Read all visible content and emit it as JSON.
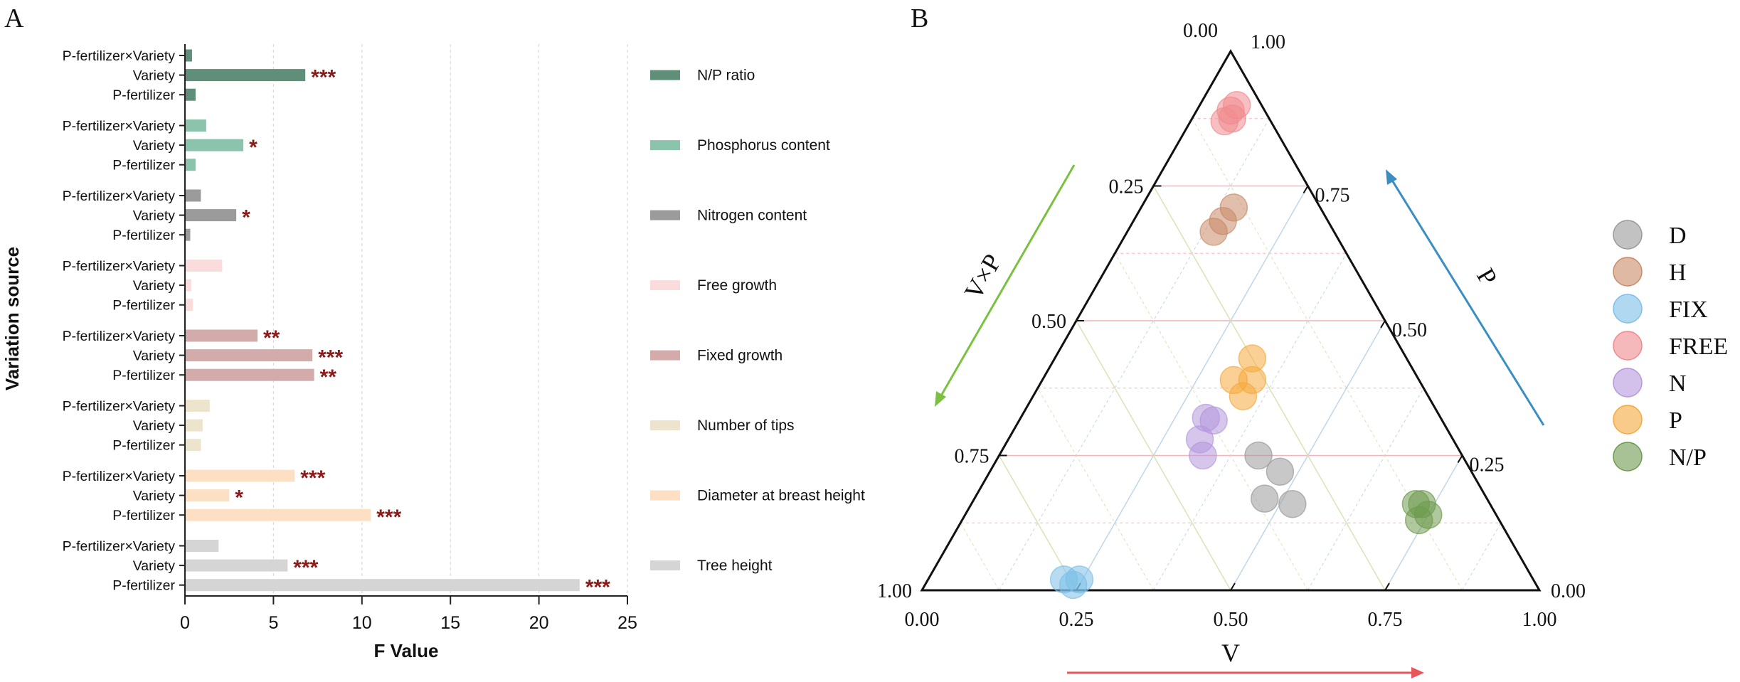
{
  "panel_a_label": "A",
  "panel_b_label": "B",
  "chart_data": [
    {
      "type": "bar",
      "orientation": "horizontal",
      "xlabel": "F Value",
      "ylabel": "Variation source",
      "xlim": [
        0,
        25
      ],
      "xticks": [
        0,
        5,
        10,
        15,
        20,
        25
      ],
      "grid": "vertical-dashed",
      "groups": [
        {
          "name": "N/P ratio",
          "color": "#5f8f78",
          "bars": [
            {
              "category": "P-fertilizer×Variety",
              "value": 0.4,
              "sig": ""
            },
            {
              "category": "Variety",
              "value": 6.8,
              "sig": "***"
            },
            {
              "category": "P-fertilizer",
              "value": 0.6,
              "sig": ""
            }
          ]
        },
        {
          "name": "Phosphorus content",
          "color": "#8cc3ac",
          "bars": [
            {
              "category": "P-fertilizer×Variety",
              "value": 1.2,
              "sig": ""
            },
            {
              "category": "Variety",
              "value": 3.3,
              "sig": "*"
            },
            {
              "category": "P-fertilizer",
              "value": 0.6,
              "sig": ""
            }
          ]
        },
        {
          "name": "Nitrogen content",
          "color": "#9b9b9b",
          "bars": [
            {
              "category": "P-fertilizer×Variety",
              "value": 0.9,
              "sig": ""
            },
            {
              "category": "Variety",
              "value": 2.9,
              "sig": "*"
            },
            {
              "category": "P-fertilizer",
              "value": 0.3,
              "sig": ""
            }
          ]
        },
        {
          "name": "Free growth",
          "color": "#fadcdc",
          "bars": [
            {
              "category": "P-fertilizer×Variety",
              "value": 2.1,
              "sig": ""
            },
            {
              "category": "Variety",
              "value": 0.35,
              "sig": ""
            },
            {
              "category": "P-fertilizer",
              "value": 0.45,
              "sig": ""
            }
          ]
        },
        {
          "name": "Fixed growth",
          "color": "#d3abab",
          "bars": [
            {
              "category": "P-fertilizer×Variety",
              "value": 4.1,
              "sig": "**"
            },
            {
              "category": "Variety",
              "value": 7.2,
              "sig": "***"
            },
            {
              "category": "P-fertilizer",
              "value": 7.3,
              "sig": "**"
            }
          ]
        },
        {
          "name": "Number of tips",
          "color": "#ece4cc",
          "bars": [
            {
              "category": "P-fertilizer×Variety",
              "value": 1.4,
              "sig": ""
            },
            {
              "category": "Variety",
              "value": 1.0,
              "sig": ""
            },
            {
              "category": "P-fertilizer",
              "value": 0.9,
              "sig": ""
            }
          ]
        },
        {
          "name": "Diameter at breast height",
          "color": "#fde0c4",
          "bars": [
            {
              "category": "P-fertilizer×Variety",
              "value": 6.2,
              "sig": "***"
            },
            {
              "category": "Variety",
              "value": 2.5,
              "sig": "*"
            },
            {
              "category": "P-fertilizer",
              "value": 10.5,
              "sig": "***"
            }
          ]
        },
        {
          "name": "Tree height",
          "color": "#d5d5d5",
          "bars": [
            {
              "category": "P-fertilizer×Variety",
              "value": 1.9,
              "sig": ""
            },
            {
              "category": "Variety",
              "value": 5.8,
              "sig": "***"
            },
            {
              "category": "P-fertilizer",
              "value": 22.3,
              "sig": "***"
            }
          ]
        }
      ]
    },
    {
      "type": "ternary-scatter",
      "axes": {
        "bottom": {
          "label": "V",
          "ticks": [
            "0.00",
            "0.25",
            "0.50",
            "0.75",
            "1.00"
          ]
        },
        "left": {
          "label": "V×P",
          "ticks": [
            "0.25",
            "0.50",
            "0.75",
            "1.00"
          ]
        },
        "right": {
          "label": "P",
          "ticks": [
            "0.00",
            "0.25",
            "0.50",
            "0.75",
            "1.00"
          ]
        },
        "apex_label": "0.00"
      },
      "series": [
        {
          "name": "D",
          "color": "#9a9a9a",
          "points": [
            {
              "V": 0.52,
              "VP": 0.32,
              "P": 0.16
            },
            {
              "V": 0.47,
              "VP": 0.36,
              "P": 0.17
            },
            {
              "V": 0.47,
              "VP": 0.31,
              "P": 0.22
            },
            {
              "V": 0.42,
              "VP": 0.33,
              "P": 0.25
            }
          ]
        },
        {
          "name": "H",
          "color": "#c98a67",
          "points": [
            {
              "V": 0.145,
              "VP": 0.17,
              "P": 0.685
            },
            {
              "V": 0.15,
              "VP": 0.14,
              "P": 0.71
            },
            {
              "V": 0.14,
              "VP": 0.195,
              "P": 0.665
            }
          ]
        },
        {
          "name": "FIX",
          "color": "#7cbfe8",
          "points": [
            {
              "V": 0.24,
              "VP": 0.75,
              "P": 0.01
            },
            {
              "V": 0.22,
              "VP": 0.76,
              "P": 0.02
            },
            {
              "V": 0.245,
              "VP": 0.735,
              "P": 0.02
            }
          ]
        },
        {
          "name": "FREE",
          "color": "#f08a8e",
          "points": [
            {
              "V": 0.055,
              "VP": 0.075,
              "P": 0.87
            },
            {
              "V": 0.065,
              "VP": 0.06,
              "P": 0.875
            },
            {
              "V": 0.055,
              "VP": 0.055,
              "P": 0.89
            },
            {
              "V": 0.06,
              "VP": 0.04,
              "P": 0.9
            }
          ]
        },
        {
          "name": "N",
          "color": "#b598dd",
          "points": [
            {
              "V": 0.33,
              "VP": 0.42,
              "P": 0.25
            },
            {
              "V": 0.31,
              "VP": 0.41,
              "P": 0.28
            },
            {
              "V": 0.3,
              "VP": 0.38,
              "P": 0.32
            },
            {
              "V": 0.315,
              "VP": 0.37,
              "P": 0.315
            }
          ]
        },
        {
          "name": "P",
          "color": "#f5a93d",
          "points": [
            {
              "V": 0.34,
              "VP": 0.3,
              "P": 0.36
            },
            {
              "V": 0.31,
              "VP": 0.3,
              "P": 0.39
            },
            {
              "V": 0.34,
              "VP": 0.27,
              "P": 0.39
            },
            {
              "V": 0.32,
              "VP": 0.25,
              "P": 0.43
            }
          ]
        },
        {
          "name": "N/P",
          "color": "#6e9a4f",
          "points": [
            {
              "V": 0.74,
              "VP": 0.13,
              "P": 0.13
            },
            {
              "V": 0.73,
              "VP": 0.11,
              "P": 0.16
            },
            {
              "V": 0.75,
              "VP": 0.11,
              "P": 0.14
            },
            {
              "V": 0.72,
              "VP": 0.12,
              "P": 0.16
            }
          ]
        }
      ]
    }
  ]
}
